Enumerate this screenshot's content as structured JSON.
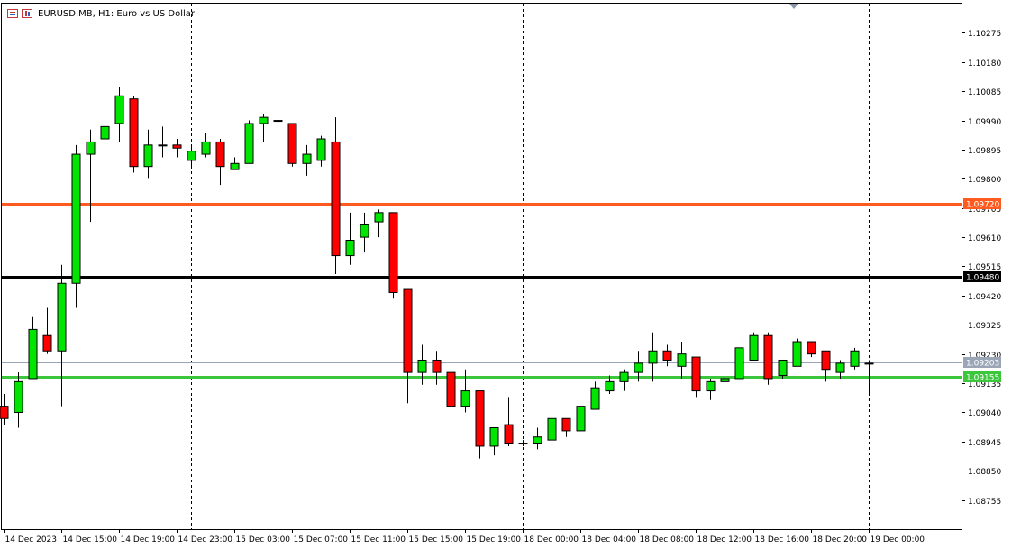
{
  "header": {
    "symbol_title": "EURUSD.MB, H1:  Euro vs US Dollar",
    "icons": [
      "chart-type-icon",
      "indicators-icon"
    ]
  },
  "colors": {
    "bull": "#00e600",
    "bear": "#ff0000",
    "wick": "#000000",
    "grid": "#000000",
    "resistance": "#ff5a1f",
    "pivot": "#000000",
    "support": "#3cc63c",
    "bid": "#9aa6b6"
  },
  "chart_data": {
    "type": "candlestick",
    "title": "EURUSD.MB, H1:  Euro vs US Dollar",
    "ylim": [
      1.0866,
      1.1037
    ],
    "y_ticks": [
      "1.10275",
      "1.10180",
      "1.10085",
      "1.09990",
      "1.09895",
      "1.09800",
      "1.09705",
      "1.09610",
      "1.09515",
      "1.09420",
      "1.09325",
      "1.09230",
      "1.09135",
      "1.09040",
      "1.08945",
      "1.08850",
      "1.08755"
    ],
    "x_labels": [
      {
        "index": 0,
        "label": "14 Dec 2023"
      },
      {
        "index": 4,
        "label": "14 Dec 15:00"
      },
      {
        "index": 8,
        "label": "14 Dec 19:00"
      },
      {
        "index": 12,
        "label": "14 Dec 23:00"
      },
      {
        "index": 16,
        "label": "15 Dec 03:00"
      },
      {
        "index": 20,
        "label": "15 Dec 07:00"
      },
      {
        "index": 24,
        "label": "15 Dec 11:00"
      },
      {
        "index": 28,
        "label": "15 Dec 15:00"
      },
      {
        "index": 32,
        "label": "15 Dec 19:00"
      },
      {
        "index": 36,
        "label": "18 Dec 00:00"
      },
      {
        "index": 40,
        "label": "18 Dec 04:00"
      },
      {
        "index": 44,
        "label": "18 Dec 08:00"
      },
      {
        "index": 48,
        "label": "18 Dec 12:00"
      },
      {
        "index": 52,
        "label": "18 Dec 16:00"
      },
      {
        "index": 56,
        "label": "18 Dec 20:00"
      },
      {
        "index": 60,
        "label": "19 Dec 00:00"
      }
    ],
    "session_dividers": [
      13,
      36,
      60
    ],
    "candles": [
      {
        "o": 1.0906,
        "h": 1.091,
        "l": 1.09,
        "c": 1.0902
      },
      {
        "o": 1.0904,
        "h": 1.0917,
        "l": 1.0899,
        "c": 1.0914
      },
      {
        "o": 1.0915,
        "h": 1.0935,
        "l": 1.0915,
        "c": 1.0931
      },
      {
        "o": 1.0929,
        "h": 1.0938,
        "l": 1.0923,
        "c": 1.0924
      },
      {
        "o": 1.0924,
        "h": 1.0952,
        "l": 1.0906,
        "c": 1.0946
      },
      {
        "o": 1.0946,
        "h": 1.0991,
        "l": 1.0938,
        "c": 1.0988
      },
      {
        "o": 1.0988,
        "h": 1.0996,
        "l": 1.0966,
        "c": 1.0992
      },
      {
        "o": 1.0993,
        "h": 1.1001,
        "l": 1.0985,
        "c": 1.0997
      },
      {
        "o": 1.0998,
        "h": 1.101,
        "l": 1.0992,
        "c": 1.1007
      },
      {
        "o": 1.1006,
        "h": 1.1007,
        "l": 1.0982,
        "c": 1.0984
      },
      {
        "o": 1.0984,
        "h": 1.0996,
        "l": 1.098,
        "c": 1.0991
      },
      {
        "o": 1.0991,
        "h": 1.0997,
        "l": 1.0987,
        "c": 1.0991
      },
      {
        "o": 1.0991,
        "h": 1.0993,
        "l": 1.0987,
        "c": 1.099
      },
      {
        "o": 1.0986,
        "h": 1.0991,
        "l": 1.0984,
        "c": 1.0989
      },
      {
        "o": 1.0988,
        "h": 1.0995,
        "l": 1.0987,
        "c": 1.0992
      },
      {
        "o": 1.0992,
        "h": 1.0993,
        "l": 1.0978,
        "c": 1.0984
      },
      {
        "o": 1.0983,
        "h": 1.0987,
        "l": 1.0983,
        "c": 1.0985
      },
      {
        "o": 1.0985,
        "h": 1.0999,
        "l": 1.0985,
        "c": 1.0998
      },
      {
        "o": 1.0998,
        "h": 1.1001,
        "l": 1.0992,
        "c": 1.1
      },
      {
        "o": 1.0999,
        "h": 1.1003,
        "l": 1.0995,
        "c": 1.0999
      },
      {
        "o": 1.0998,
        "h": 1.0998,
        "l": 1.0984,
        "c": 1.0985
      },
      {
        "o": 1.0985,
        "h": 1.0991,
        "l": 1.0981,
        "c": 1.0988
      },
      {
        "o": 1.0986,
        "h": 1.0994,
        "l": 1.0984,
        "c": 1.0993
      },
      {
        "o": 1.0992,
        "h": 1.1,
        "l": 1.0949,
        "c": 1.0955
      },
      {
        "o": 1.0955,
        "h": 1.0969,
        "l": 1.0952,
        "c": 1.096
      },
      {
        "o": 1.0961,
        "h": 1.0969,
        "l": 1.0956,
        "c": 1.0965
      },
      {
        "o": 1.0966,
        "h": 1.097,
        "l": 1.0961,
        "c": 1.0969
      },
      {
        "o": 1.0969,
        "h": 1.0969,
        "l": 1.0941,
        "c": 1.0943
      },
      {
        "o": 1.0944,
        "h": 1.0944,
        "l": 1.0907,
        "c": 1.0917
      },
      {
        "o": 1.0917,
        "h": 1.0926,
        "l": 1.0913,
        "c": 1.0921
      },
      {
        "o": 1.0921,
        "h": 1.0924,
        "l": 1.0913,
        "c": 1.0917
      },
      {
        "o": 1.0917,
        "h": 1.0917,
        "l": 1.0905,
        "c": 1.0906
      },
      {
        "o": 1.0906,
        "h": 1.0918,
        "l": 1.0904,
        "c": 1.0911
      },
      {
        "o": 1.0911,
        "h": 1.0911,
        "l": 1.0889,
        "c": 1.0893
      },
      {
        "o": 1.0893,
        "h": 1.0899,
        "l": 1.089,
        "c": 1.0899
      },
      {
        "o": 1.09,
        "h": 1.0909,
        "l": 1.0893,
        "c": 1.0894
      },
      {
        "o": 1.0894,
        "h": 1.0895,
        "l": 1.0893,
        "c": 1.0894
      },
      {
        "o": 1.0894,
        "h": 1.0899,
        "l": 1.0892,
        "c": 1.0896
      },
      {
        "o": 1.0895,
        "h": 1.0902,
        "l": 1.0894,
        "c": 1.0902
      },
      {
        "o": 1.0902,
        "h": 1.0902,
        "l": 1.0896,
        "c": 1.0898
      },
      {
        "o": 1.0898,
        "h": 1.0906,
        "l": 1.0898,
        "c": 1.0906
      },
      {
        "o": 1.0905,
        "h": 1.0914,
        "l": 1.0905,
        "c": 1.0912
      },
      {
        "o": 1.0911,
        "h": 1.0916,
        "l": 1.091,
        "c": 1.0914
      },
      {
        "o": 1.0914,
        "h": 1.0918,
        "l": 1.0911,
        "c": 1.0917
      },
      {
        "o": 1.0917,
        "h": 1.0924,
        "l": 1.0914,
        "c": 1.092
      },
      {
        "o": 1.092,
        "h": 1.093,
        "l": 1.0914,
        "c": 1.0924
      },
      {
        "o": 1.0924,
        "h": 1.0926,
        "l": 1.0919,
        "c": 1.0921
      },
      {
        "o": 1.0919,
        "h": 1.0927,
        "l": 1.0915,
        "c": 1.0923
      },
      {
        "o": 1.0922,
        "h": 1.0922,
        "l": 1.0909,
        "c": 1.0911
      },
      {
        "o": 1.0911,
        "h": 1.0915,
        "l": 1.0908,
        "c": 1.0914
      },
      {
        "o": 1.0914,
        "h": 1.0916,
        "l": 1.0912,
        "c": 1.0915
      },
      {
        "o": 1.0915,
        "h": 1.0925,
        "l": 1.0915,
        "c": 1.0925
      },
      {
        "o": 1.0921,
        "h": 1.093,
        "l": 1.0921,
        "c": 1.0929
      },
      {
        "o": 1.0929,
        "h": 1.093,
        "l": 1.0913,
        "c": 1.0915
      },
      {
        "o": 1.0916,
        "h": 1.0921,
        "l": 1.0915,
        "c": 1.0921
      },
      {
        "o": 1.0919,
        "h": 1.0928,
        "l": 1.0919,
        "c": 1.0927
      },
      {
        "o": 1.0927,
        "h": 1.0927,
        "l": 1.0922,
        "c": 1.0923
      },
      {
        "o": 1.0924,
        "h": 1.0924,
        "l": 1.0914,
        "c": 1.0918
      },
      {
        "o": 1.0917,
        "h": 1.0921,
        "l": 1.0915,
        "c": 1.092
      },
      {
        "o": 1.0919,
        "h": 1.0925,
        "l": 1.0918,
        "c": 1.0924
      },
      {
        "o": 1.092,
        "h": 1.0921,
        "l": 1.091,
        "c": 1.092
      }
    ],
    "levels": [
      {
        "name": "resistance",
        "price": 1.0972,
        "label": "1.09720",
        "color": "#ff5a1f"
      },
      {
        "name": "pivot",
        "price": 1.0948,
        "label": "1.09480",
        "color": "#000000"
      },
      {
        "name": "support",
        "price": 1.09155,
        "label": "1.09155",
        "color": "#3cc63c"
      }
    ],
    "bid": {
      "price": 1.09203,
      "label": "1.09203"
    }
  }
}
